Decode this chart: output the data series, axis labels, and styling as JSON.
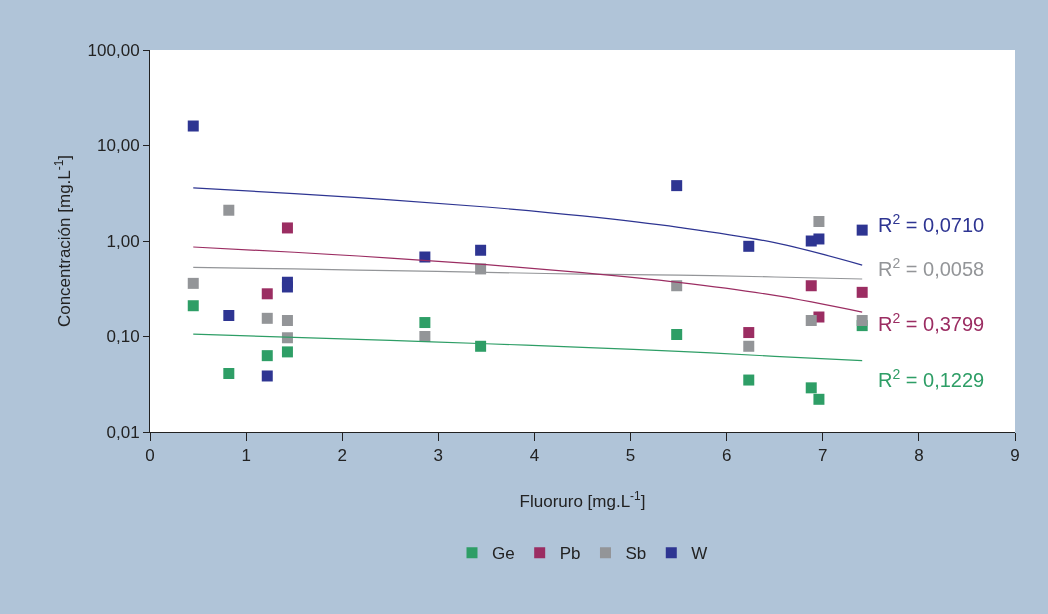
{
  "chart_data": {
    "type": "scatter",
    "xlabel": "Fluoruro [mg.L$^{-1}$]",
    "ylabel": "Concentración [mg.L$^{-1}$]",
    "xlim": [
      0,
      9
    ],
    "xticks": [
      0,
      1,
      2,
      3,
      4,
      5,
      6,
      7,
      8,
      9
    ],
    "ylim": [
      0.01,
      100
    ],
    "yticks": [
      {
        "value": 0.01,
        "label": "0,01"
      },
      {
        "value": 0.1,
        "label": "0,10"
      },
      {
        "value": 1,
        "label": "1,00"
      },
      {
        "value": 10,
        "label": "10,00"
      },
      {
        "value": 100,
        "label": "100,00"
      }
    ],
    "log": "y",
    "legend": "bottom",
    "marker": "square",
    "series": [
      {
        "name": "Ge",
        "color": "#2e9e66",
        "x": [
          0.45,
          0.82,
          1.22,
          1.43,
          2.86,
          3.44,
          5.48,
          6.23,
          6.88,
          6.96,
          7.41
        ],
        "values": [
          0.21,
          0.041,
          0.063,
          0.069,
          0.14,
          0.079,
          0.105,
          0.035,
          0.029,
          0.022,
          0.13
        ]
      },
      {
        "name": "Pb",
        "color": "#9b2d62",
        "x": [
          1.22,
          1.43,
          6.23,
          6.88,
          6.96,
          7.41
        ],
        "values": [
          0.28,
          1.37,
          0.11,
          0.34,
          0.16,
          0.29
        ]
      },
      {
        "name": "Sb",
        "color": "#939598",
        "x": [
          0.45,
          0.82,
          1.22,
          1.43,
          1.43,
          2.86,
          3.44,
          5.48,
          6.23,
          6.88,
          6.96,
          7.41
        ],
        "values": [
          0.36,
          2.1,
          0.155,
          0.147,
          0.097,
          0.1,
          0.51,
          0.34,
          0.079,
          0.147,
          1.6,
          0.147
        ]
      },
      {
        "name": "W",
        "color": "#2e3592",
        "x": [
          0.45,
          0.82,
          1.22,
          1.43,
          1.43,
          2.86,
          3.44,
          5.48,
          6.23,
          6.88,
          6.96,
          7.41
        ],
        "values": [
          16,
          0.166,
          0.0386,
          0.37,
          0.33,
          0.68,
          0.8,
          3.8,
          0.88,
          1.0,
          1.05,
          1.3
        ]
      },
      {
        "type": "line",
        "marker": "none",
        "color": "#2e3592",
        "x": [
          0.45,
          1.5,
          2.5,
          3.5,
          4.5,
          5.5,
          6.5,
          7.41
        ],
        "values": [
          3.6,
          3.14,
          2.7,
          2.27,
          1.83,
          1.39,
          0.96,
          0.56
        ]
      },
      {
        "type": "line",
        "marker": "none",
        "color": "#939598",
        "x": [
          0.45,
          1.5,
          2.5,
          3.5,
          4.5,
          5.5,
          6.5,
          7.41
        ],
        "values": [
          0.53,
          0.51,
          0.49,
          0.47,
          0.45,
          0.44,
          0.42,
          0.4
        ]
      },
      {
        "type": "line",
        "marker": "none",
        "color": "#9b2d62",
        "x": [
          0.45,
          1.5,
          2.5,
          3.5,
          4.5,
          5.5,
          6.5,
          7.41
        ],
        "values": [
          0.865,
          0.762,
          0.663,
          0.565,
          0.466,
          0.368,
          0.269,
          0.18
        ]
      },
      {
        "type": "line",
        "marker": "none",
        "color": "#2e9e66",
        "x": [
          0.45,
          1.5,
          2.5,
          3.5,
          4.5,
          5.5,
          6.5,
          7.41
        ],
        "values": [
          0.106,
          0.098,
          0.091,
          0.084,
          0.077,
          0.07,
          0.062,
          0.056
        ]
      }
    ],
    "annotations": [
      "R$^{2}$ = 0,0710",
      "R$^{2}$ = 0,0058",
      "R$^{2}$ = 0,3799",
      "R$^{2}$ = 0,1229"
    ]
  }
}
